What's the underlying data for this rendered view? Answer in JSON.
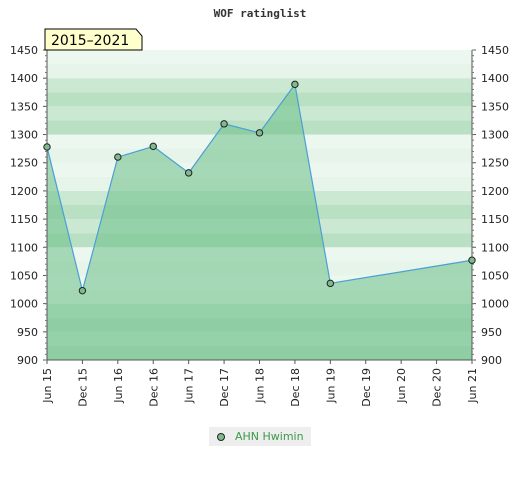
{
  "chart_data": {
    "type": "area",
    "title": "WOF ratinglist",
    "badge": "2015–2021",
    "xlabel": "",
    "ylabel": "",
    "ylim": [
      900,
      1450
    ],
    "y_ticks": [
      900,
      950,
      1000,
      1050,
      1100,
      1150,
      1200,
      1250,
      1300,
      1350,
      1400,
      1450
    ],
    "x_ticks": [
      "Jun 15",
      "Dec 15",
      "Jun 16",
      "Dec 16",
      "Jun 17",
      "Dec 17",
      "Jun 18",
      "Dec 18",
      "Jun 19",
      "Dec 19",
      "Jun 20",
      "Dec 20",
      "Jun 21"
    ],
    "grid": true,
    "legend_position": "bottom-center",
    "series": [
      {
        "name": "AHN Hwimin",
        "points": [
          {
            "x": "Jun 15",
            "y": 1278
          },
          {
            "x": "Dec 15",
            "y": 1023
          },
          {
            "x": "Jun 16",
            "y": 1260
          },
          {
            "x": "Dec 16",
            "y": 1279
          },
          {
            "x": "Jun 17",
            "y": 1232
          },
          {
            "x": "Dec 17",
            "y": 1319
          },
          {
            "x": "Jun 18",
            "y": 1303
          },
          {
            "x": "Dec 18",
            "y": 1389
          },
          {
            "x": "Jun 19",
            "y": 1036
          },
          {
            "x": "Jun 21",
            "y": 1077
          }
        ]
      }
    ],
    "colors": {
      "fill": "#6cbf86",
      "line": "#4a9fd6",
      "marker": "#7fb98e",
      "band_light": "#e6f4ea",
      "band_dark": "#b9e0c3",
      "badge_bg": "#ffffcc",
      "legend_text": "#3b9a4a"
    }
  }
}
